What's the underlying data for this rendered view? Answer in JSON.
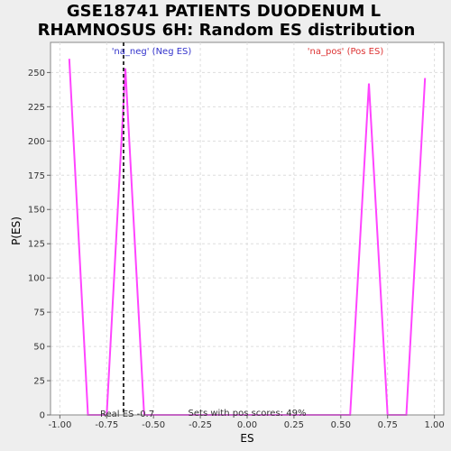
{
  "chart_data": {
    "type": "line",
    "title_lines": [
      "GSE18741 PATIENTS DUODENUM L",
      "RHAMNOSUS 6H: Random ES distribution"
    ],
    "xlabel": "ES",
    "ylabel": "P(ES)",
    "xlim": [
      -1.05,
      1.05
    ],
    "ylim": [
      0,
      272
    ],
    "x_ticks": [
      -1.0,
      -0.75,
      -0.5,
      -0.25,
      0.0,
      0.25,
      0.5,
      0.75,
      1.0
    ],
    "x_tick_labels": [
      "-1.00",
      "-0.75",
      "-0.50",
      "-0.25",
      "0.00",
      "0.25",
      "0.50",
      "0.75",
      "1.00"
    ],
    "y_ticks": [
      0,
      25,
      50,
      75,
      100,
      125,
      150,
      175,
      200,
      225,
      250
    ],
    "y_tick_labels": [
      "0",
      "25",
      "50",
      "75",
      "100",
      "125",
      "150",
      "175",
      "200",
      "225",
      "250"
    ],
    "grid": true,
    "series": [
      {
        "color": "#ff44ff",
        "x": [
          -0.95,
          -0.85,
          -0.75,
          -0.65,
          -0.55,
          -0.45,
          -0.35,
          -0.25,
          -0.15,
          -0.05,
          0.05,
          0.15,
          0.25,
          0.35,
          0.45,
          0.55,
          0.65,
          0.75,
          0.85,
          0.95
        ],
        "y": [
          260,
          0,
          0,
          253,
          0,
          0,
          0,
          0,
          0,
          0,
          0,
          0,
          0,
          0,
          0,
          0,
          242,
          0,
          0,
          246
        ]
      }
    ],
    "real_es": -0.66,
    "annotations": {
      "neg_label": "'na_neg' (Neg ES)",
      "pos_label": "'na_pos' (Pos ES)",
      "real_es_label": "Real ES -0.7",
      "pos_scores_label": "Sets with pos scores: 49%"
    },
    "colors": {
      "background": "#eeeeee",
      "plot_background": "#ffffff",
      "line": "#ff44ff",
      "neg_label": "#3333cc",
      "pos_label": "#dd3333",
      "grid": "#dddddd",
      "real_es_line": "#333333"
    }
  }
}
